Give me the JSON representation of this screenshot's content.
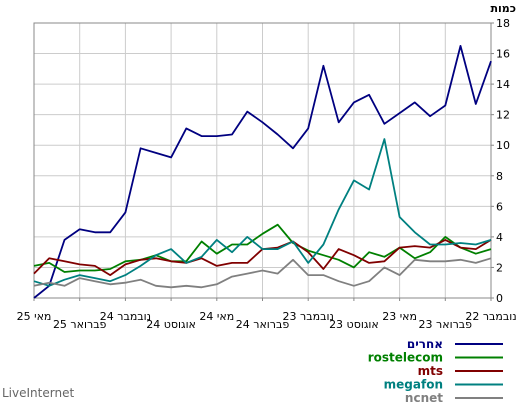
{
  "brand": "LiveInternet",
  "chart_data": {
    "type": "line",
    "y_unit_label": "כמות",
    "ylim": [
      0,
      18
    ],
    "y_ticks": [
      0,
      2,
      4,
      6,
      8,
      10,
      12,
      14,
      16,
      18
    ],
    "grid": true,
    "x": [
      "מאי 25",
      "",
      "",
      "פברואר 25",
      "",
      "",
      "נובמבר 24",
      "",
      "",
      "אוגוסט 24",
      "",
      "",
      "מאי 24",
      "",
      "",
      "פברואר 24",
      "",
      "",
      "נובמבר 23",
      "",
      "",
      "אוגוסט 23",
      "",
      "",
      "מאי 23",
      "",
      "",
      "פברואר 23",
      "",
      "",
      "נובמבר 22"
    ],
    "x_tick_labels": [
      "מאי 25",
      "פברואר 25",
      "נובמבר 24",
      "אוגוסט 24",
      "מאי 24",
      "פברואר 24",
      "נובמבר 23",
      "אוגוסט 23",
      "מאי 23",
      "פברואר 23",
      "נובמבר 22"
    ],
    "legend_position": "bottom-right",
    "series": [
      {
        "name": "אחרים",
        "color": "#000080",
        "values": [
          0,
          0.8,
          3.8,
          4.5,
          4.3,
          4.3,
          5.6,
          9.8,
          9.5,
          9.2,
          11.1,
          10.6,
          10.6,
          10.7,
          12.2,
          11.5,
          10.7,
          9.8,
          11.1,
          15.2,
          11.5,
          12.8,
          13.3,
          11.4,
          12.1,
          12.8,
          11.9,
          12.6,
          16.5,
          12.7,
          15.5
        ]
      },
      {
        "name": "rostelecom",
        "color": "#008000",
        "values": [
          2.1,
          2.3,
          1.7,
          1.8,
          1.8,
          1.9,
          2.4,
          2.5,
          2.8,
          2.4,
          2.4,
          3.7,
          2.9,
          3.5,
          3.5,
          4.2,
          4.8,
          3.6,
          3.1,
          2.8,
          2.5,
          2.0,
          3.0,
          2.7,
          3.3,
          2.6,
          3.0,
          4.0,
          3.3,
          2.9,
          3.2
        ]
      },
      {
        "name": "mts",
        "color": "#800000",
        "values": [
          1.6,
          2.6,
          2.4,
          2.2,
          2.1,
          1.5,
          2.2,
          2.5,
          2.6,
          2.4,
          2.3,
          2.6,
          2.1,
          2.3,
          2.3,
          3.2,
          3.3,
          3.7,
          3.0,
          1.9,
          3.2,
          2.8,
          2.3,
          2.4,
          3.3,
          3.4,
          3.3,
          3.8,
          3.3,
          3.2,
          3.8
        ]
      },
      {
        "name": "megafon",
        "color": "#008080",
        "values": [
          1.1,
          0.8,
          1.2,
          1.5,
          1.3,
          1.1,
          1.5,
          2.1,
          2.8,
          3.2,
          2.3,
          2.7,
          3.8,
          3.0,
          4.0,
          3.2,
          3.2,
          3.7,
          2.3,
          3.5,
          5.8,
          7.7,
          7.1,
          10.4,
          5.3,
          4.3,
          3.5,
          3.5,
          3.6,
          3.5,
          3.8
        ]
      },
      {
        "name": "ncnet",
        "color": "#808080",
        "values": [
          0.8,
          1.0,
          0.8,
          1.3,
          1.1,
          0.9,
          1.0,
          1.2,
          0.8,
          0.7,
          0.8,
          0.7,
          0.9,
          1.4,
          1.6,
          1.8,
          1.6,
          2.5,
          1.5,
          1.5,
          1.1,
          0.8,
          1.1,
          2.0,
          1.5,
          2.5,
          2.4,
          2.4,
          2.5,
          2.3,
          2.6
        ]
      }
    ]
  }
}
